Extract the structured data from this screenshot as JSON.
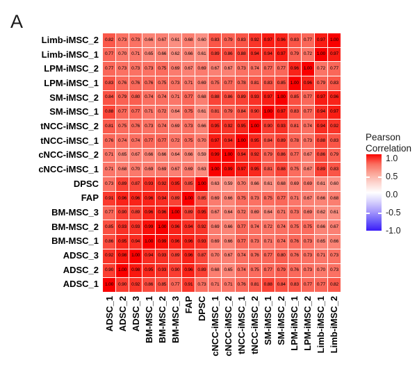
{
  "panel_label": "A",
  "legend": {
    "title_line1": "Pearson",
    "title_line2": "Correlation",
    "ticks": [
      "1.0",
      "0.5",
      "0.0",
      "-0.5",
      "-1.0"
    ]
  },
  "colors": {
    "background": "#ffffff",
    "grid_line": "#ffffff",
    "cell_text": "#000000",
    "label_text": "#000000",
    "max_color": "#fa0400",
    "mid_color": "#ffffff",
    "min_color": "#3a1cf8"
  },
  "chart_data": {
    "type": "heatmap",
    "legend_title": "Pearson Correlation",
    "value_range": [
      -1.0,
      1.0
    ],
    "colormap": "red-white-blue",
    "rows": [
      "Limb-iMSC_2",
      "Limb-iMSC_1",
      "LPM-iMSC_2",
      "LPM-iMSC_1",
      "SM-iMSC_2",
      "SM-iMSC_1",
      "tNCC-iMSC_2",
      "tNCC-iMSC_1",
      "cNCC-iMSC_2",
      "cNCC-iMSC_1",
      "DPSC",
      "FAP",
      "BM-MSC_3",
      "BM-MSC_2",
      "BM-MSC_1",
      "ADSC_3",
      "ADSC_2",
      "ADSC_1"
    ],
    "columns": [
      "ADSC_1",
      "ADSC_2",
      "ADSC_3",
      "BM-MSC_1",
      "BM-MSC_2",
      "BM-MSC_3",
      "FAP",
      "DPSC",
      "cNCC-iMSC_1",
      "cNCC-iMSC_2",
      "tNCC-iMSC_1",
      "tNCC-iMSC_2",
      "SM-iMSC_1",
      "SM-iMSC_2",
      "LPM-iMSC_1",
      "LPM-iMSC_2",
      "Limb-iMSC_1",
      "Limb-iMSC_2"
    ],
    "values": [
      [
        0.82,
        0.73,
        0.73,
        0.66,
        0.67,
        0.61,
        0.68,
        0.6,
        0.83,
        0.79,
        0.83,
        0.92,
        0.97,
        0.96,
        0.83,
        0.77,
        0.97,
        1.0
      ],
      [
        0.77,
        0.7,
        0.71,
        0.65,
        0.66,
        0.62,
        0.66,
        0.61,
        0.89,
        0.86,
        0.88,
        0.94,
        0.94,
        0.97,
        0.79,
        0.72,
        1.0,
        0.97
      ],
      [
        0.77,
        0.73,
        0.73,
        0.73,
        0.75,
        0.69,
        0.67,
        0.69,
        0.67,
        0.67,
        0.73,
        0.74,
        0.77,
        0.77,
        0.96,
        1.0,
        0.72,
        0.77
      ],
      [
        0.83,
        0.76,
        0.76,
        0.76,
        0.75,
        0.73,
        0.71,
        0.69,
        0.75,
        0.77,
        0.78,
        0.81,
        0.83,
        0.85,
        1.0,
        0.96,
        0.79,
        0.83
      ],
      [
        0.84,
        0.79,
        0.8,
        0.74,
        0.74,
        0.71,
        0.77,
        0.68,
        0.88,
        0.86,
        0.89,
        0.93,
        0.97,
        1.0,
        0.85,
        0.77,
        0.97,
        0.96
      ],
      [
        0.88,
        0.77,
        0.77,
        0.71,
        0.72,
        0.64,
        0.75,
        0.61,
        0.81,
        0.79,
        0.84,
        0.9,
        1.0,
        0.97,
        0.83,
        0.77,
        0.94,
        0.97
      ],
      [
        0.81,
        0.75,
        0.76,
        0.73,
        0.74,
        0.69,
        0.73,
        0.66,
        0.95,
        0.92,
        0.95,
        1.0,
        0.9,
        0.93,
        0.81,
        0.74,
        0.94,
        0.92
      ],
      [
        0.76,
        0.74,
        0.74,
        0.77,
        0.77,
        0.72,
        0.75,
        0.7,
        0.97,
        0.94,
        1.0,
        0.95,
        0.84,
        0.89,
        0.78,
        0.73,
        0.88,
        0.83
      ],
      [
        0.71,
        0.65,
        0.67,
        0.66,
        0.66,
        0.64,
        0.66,
        0.59,
        0.99,
        1.0,
        0.94,
        0.92,
        0.79,
        0.86,
        0.77,
        0.67,
        0.86,
        0.79
      ],
      [
        0.71,
        0.68,
        0.7,
        0.69,
        0.69,
        0.67,
        0.69,
        0.63,
        1.0,
        0.99,
        0.97,
        0.95,
        0.81,
        0.88,
        0.75,
        0.67,
        0.89,
        0.83
      ],
      [
        0.73,
        0.89,
        0.87,
        0.93,
        0.92,
        0.95,
        0.85,
        1.0,
        0.63,
        0.59,
        0.7,
        0.66,
        0.61,
        0.68,
        0.69,
        0.69,
        0.61,
        0.6
      ],
      [
        0.91,
        0.96,
        0.96,
        0.96,
        0.94,
        0.89,
        1.0,
        0.85,
        0.69,
        0.66,
        0.75,
        0.73,
        0.75,
        0.77,
        0.71,
        0.67,
        0.66,
        0.68
      ],
      [
        0.77,
        0.9,
        0.89,
        0.96,
        0.96,
        1.0,
        0.89,
        0.95,
        0.67,
        0.64,
        0.72,
        0.69,
        0.64,
        0.71,
        0.73,
        0.69,
        0.62,
        0.61
      ],
      [
        0.85,
        0.93,
        0.93,
        0.99,
        1.0,
        0.96,
        0.94,
        0.92,
        0.69,
        0.66,
        0.77,
        0.74,
        0.72,
        0.74,
        0.75,
        0.75,
        0.66,
        0.67
      ],
      [
        0.86,
        0.95,
        0.94,
        1.0,
        0.99,
        0.96,
        0.96,
        0.93,
        0.69,
        0.66,
        0.77,
        0.73,
        0.71,
        0.74,
        0.76,
        0.73,
        0.65,
        0.66
      ],
      [
        0.92,
        0.98,
        1.0,
        0.94,
        0.93,
        0.89,
        0.96,
        0.87,
        0.7,
        0.67,
        0.74,
        0.76,
        0.77,
        0.8,
        0.76,
        0.73,
        0.71,
        0.73
      ],
      [
        0.9,
        1.0,
        0.98,
        0.95,
        0.93,
        0.9,
        0.96,
        0.89,
        0.68,
        0.65,
        0.74,
        0.75,
        0.77,
        0.79,
        0.76,
        0.73,
        0.7,
        0.73
      ],
      [
        1.0,
        0.9,
        0.92,
        0.86,
        0.85,
        0.77,
        0.91,
        0.73,
        0.71,
        0.71,
        0.76,
        0.81,
        0.88,
        0.84,
        0.83,
        0.77,
        0.77,
        0.82
      ]
    ]
  }
}
